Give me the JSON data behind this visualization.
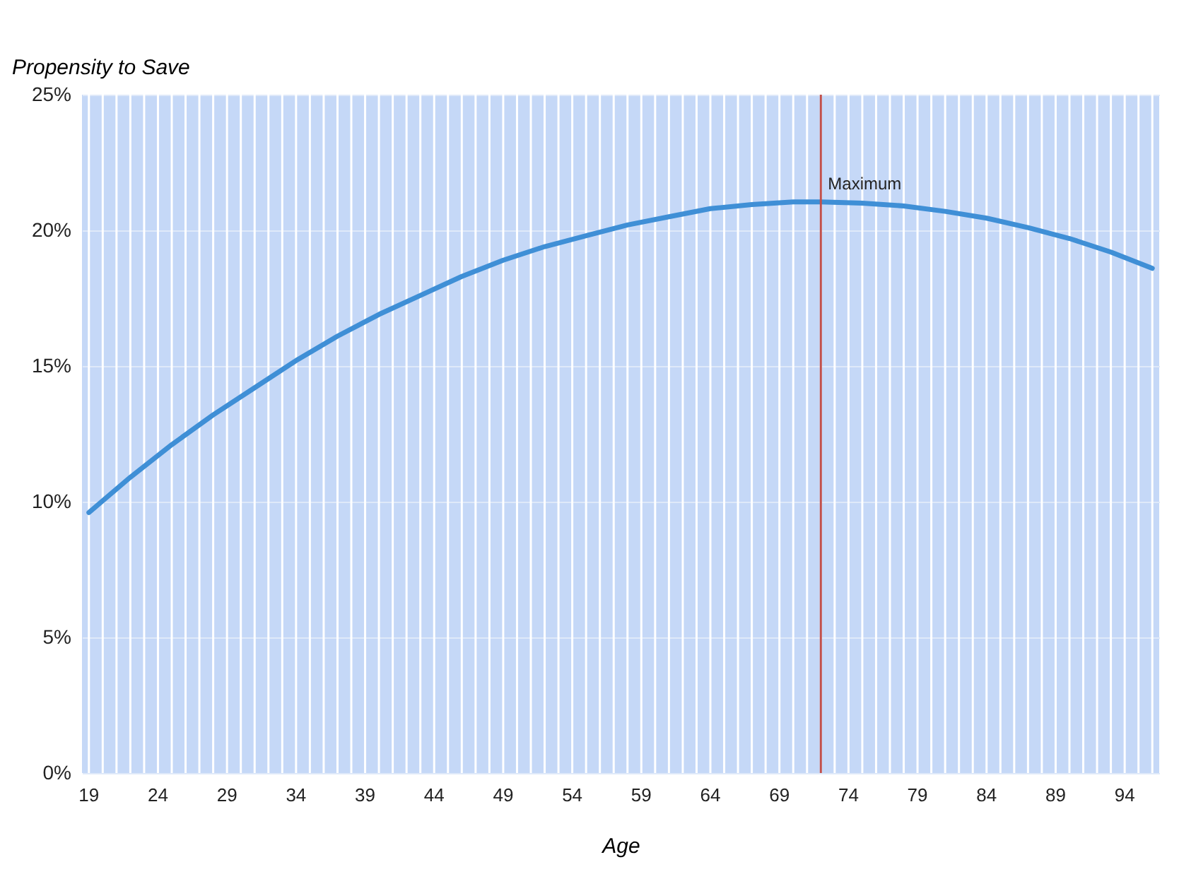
{
  "chart_data": {
    "type": "line",
    "xlabel": "Age",
    "ylabel": "Propensity to Save",
    "x": [
      19,
      22,
      25,
      28,
      31,
      34,
      37,
      40,
      43,
      46,
      49,
      52,
      55,
      58,
      61,
      64,
      67,
      70,
      72,
      75,
      78,
      81,
      84,
      87,
      90,
      93,
      96
    ],
    "series": [
      {
        "color": "#3f8fd6",
        "values": [
          9.6,
          10.9,
          12.1,
          13.2,
          14.2,
          15.2,
          16.1,
          16.9,
          17.6,
          18.3,
          18.9,
          19.4,
          19.8,
          20.2,
          20.5,
          20.8,
          20.95,
          21.05,
          21.05,
          21.0,
          20.9,
          20.7,
          20.45,
          20.1,
          19.7,
          19.2,
          18.6
        ]
      }
    ],
    "xlim": [
      18.5,
      96.5
    ],
    "xticks": [
      {
        "value": 19,
        "label": "19"
      },
      {
        "value": 20,
        "label": null
      },
      {
        "value": 21,
        "label": null
      },
      {
        "value": 22,
        "label": null
      },
      {
        "value": 23,
        "label": null
      },
      {
        "value": 24,
        "label": "24"
      },
      {
        "value": 25,
        "label": null
      },
      {
        "value": 26,
        "label": null
      },
      {
        "value": 27,
        "label": null
      },
      {
        "value": 28,
        "label": null
      },
      {
        "value": 29,
        "label": "29"
      },
      {
        "value": 30,
        "label": null
      },
      {
        "value": 31,
        "label": null
      },
      {
        "value": 32,
        "label": null
      },
      {
        "value": 33,
        "label": null
      },
      {
        "value": 34,
        "label": "34"
      },
      {
        "value": 35,
        "label": null
      },
      {
        "value": 36,
        "label": null
      },
      {
        "value": 37,
        "label": null
      },
      {
        "value": 38,
        "label": null
      },
      {
        "value": 39,
        "label": "39"
      },
      {
        "value": 40,
        "label": null
      },
      {
        "value": 41,
        "label": null
      },
      {
        "value": 42,
        "label": null
      },
      {
        "value": 43,
        "label": null
      },
      {
        "value": 44,
        "label": "44"
      },
      {
        "value": 45,
        "label": null
      },
      {
        "value": 46,
        "label": null
      },
      {
        "value": 47,
        "label": null
      },
      {
        "value": 48,
        "label": null
      },
      {
        "value": 49,
        "label": "49"
      },
      {
        "value": 50,
        "label": null
      },
      {
        "value": 51,
        "label": null
      },
      {
        "value": 52,
        "label": null
      },
      {
        "value": 53,
        "label": null
      },
      {
        "value": 54,
        "label": "54"
      },
      {
        "value": 55,
        "label": null
      },
      {
        "value": 56,
        "label": null
      },
      {
        "value": 57,
        "label": null
      },
      {
        "value": 58,
        "label": null
      },
      {
        "value": 59,
        "label": "59"
      },
      {
        "value": 60,
        "label": null
      },
      {
        "value": 61,
        "label": null
      },
      {
        "value": 62,
        "label": null
      },
      {
        "value": 63,
        "label": null
      },
      {
        "value": 64,
        "label": "64"
      },
      {
        "value": 65,
        "label": null
      },
      {
        "value": 66,
        "label": null
      },
      {
        "value": 67,
        "label": null
      },
      {
        "value": 68,
        "label": null
      },
      {
        "value": 69,
        "label": "69"
      },
      {
        "value": 70,
        "label": null
      },
      {
        "value": 71,
        "label": null
      },
      {
        "value": 72,
        "label": null
      },
      {
        "value": 73,
        "label": null
      },
      {
        "value": 74,
        "label": "74"
      },
      {
        "value": 75,
        "label": null
      },
      {
        "value": 76,
        "label": null
      },
      {
        "value": 77,
        "label": null
      },
      {
        "value": 78,
        "label": null
      },
      {
        "value": 79,
        "label": "79"
      },
      {
        "value": 80,
        "label": null
      },
      {
        "value": 81,
        "label": null
      },
      {
        "value": 82,
        "label": null
      },
      {
        "value": 83,
        "label": null
      },
      {
        "value": 84,
        "label": "84"
      },
      {
        "value": 85,
        "label": null
      },
      {
        "value": 86,
        "label": null
      },
      {
        "value": 87,
        "label": null
      },
      {
        "value": 88,
        "label": null
      },
      {
        "value": 89,
        "label": "89"
      },
      {
        "value": 90,
        "label": null
      },
      {
        "value": 91,
        "label": null
      },
      {
        "value": 92,
        "label": null
      },
      {
        "value": 93,
        "label": null
      },
      {
        "value": 94,
        "label": "94"
      },
      {
        "value": 95,
        "label": null
      },
      {
        "value": 96,
        "label": null
      }
    ],
    "ylim": [
      0,
      25
    ],
    "yticks": [
      {
        "value": 0,
        "label": "0%"
      },
      {
        "value": 5,
        "label": "5%"
      },
      {
        "value": 10,
        "label": "10%"
      },
      {
        "value": 15,
        "label": "15%"
      },
      {
        "value": 20,
        "label": "20%"
      },
      {
        "value": 25,
        "label": "25%"
      }
    ],
    "ref_lines": [
      {
        "axis": "x",
        "value": 72,
        "label": "Maximum",
        "color": "#c0504d"
      }
    ],
    "grid": true,
    "marker": "none",
    "line_style": "solid"
  }
}
